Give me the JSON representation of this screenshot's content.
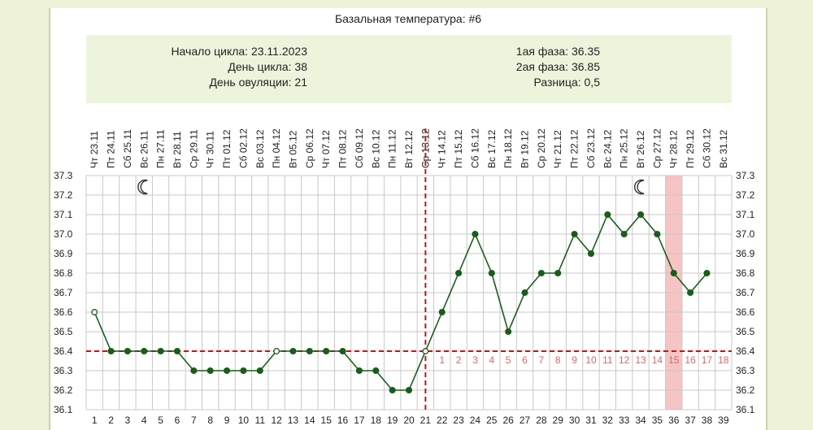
{
  "title": "Базальная температура: #6",
  "info": {
    "cycle_start": "Начало цикла: 23.11.2023",
    "cycle_day": "День цикла: 38",
    "ovulation_day": "День овуляции: 21",
    "phase1": "1ая фаза: 36.35",
    "phase2": "2ая фаза: 36.85",
    "difference": "Разница: 0,5"
  },
  "colors": {
    "line": "#1a5c1a",
    "ovulation": "#cc1111",
    "coverline": "#cc1111",
    "highlight": "#f6c4c4",
    "luteal_numbers": "#d86868",
    "grid": "#c8c8c8"
  },
  "chart_data": {
    "type": "line",
    "y_ticks": [
      "37.3",
      "37.2",
      "37.1",
      "37.0",
      "36.9",
      "36.8",
      "36.7",
      "36.6",
      "36.5",
      "36.4",
      "36.3",
      "36.2",
      "36.1"
    ],
    "ylim": [
      36.1,
      37.3
    ],
    "grid": true,
    "cycle_days": [
      1,
      2,
      3,
      4,
      5,
      6,
      7,
      8,
      9,
      10,
      11,
      12,
      13,
      14,
      15,
      16,
      17,
      18,
      19,
      20,
      21,
      22,
      23,
      24,
      25,
      26,
      27,
      28,
      29,
      30,
      31,
      32,
      33,
      34,
      35,
      36,
      37,
      38,
      39
    ],
    "weekdays": [
      "Чт",
      "Пт",
      "Сб",
      "Вс",
      "Пн",
      "Вт",
      "Ср",
      "Чт",
      "Пт",
      "Сб",
      "Вс",
      "Пн",
      "Вт",
      "Ср",
      "Чт",
      "Пт",
      "Сб",
      "Вс",
      "Пн",
      "Вт",
      "Ср",
      "Чт",
      "Пт",
      "Сб",
      "Вс",
      "Пн",
      "Вт",
      "Ср",
      "Чт",
      "Пт",
      "Сб",
      "Вс",
      "Пн",
      "Вт",
      "Ср",
      "Чт",
      "Пт",
      "Сб",
      "Вс"
    ],
    "dates": [
      "23.11",
      "24.11",
      "25.11",
      "26.11",
      "27.11",
      "28.11",
      "29.11",
      "30.11",
      "01.12",
      "02.12",
      "03.12",
      "04.12",
      "05.12",
      "06.12",
      "07.12",
      "08.12",
      "09.12",
      "10.12",
      "11.12",
      "12.12",
      "13.12",
      "14.12",
      "15.12",
      "16.12",
      "17.12",
      "18.12",
      "19.12",
      "20.12",
      "21.12",
      "22.12",
      "23.12",
      "24.12",
      "25.12",
      "26.12",
      "27.12",
      "28.12",
      "29.12",
      "30.12",
      "31.12"
    ],
    "temperatures": [
      36.6,
      36.4,
      36.4,
      36.4,
      36.4,
      36.4,
      36.3,
      36.3,
      36.3,
      36.3,
      36.3,
      36.4,
      36.4,
      36.4,
      36.4,
      36.4,
      36.3,
      36.3,
      36.2,
      36.2,
      36.4,
      36.6,
      36.8,
      37.0,
      36.8,
      36.5,
      36.7,
      36.8,
      36.8,
      37.0,
      36.9,
      37.1,
      37.0,
      37.1,
      37.0,
      36.8,
      36.7,
      36.8
    ],
    "open_markers_days": [
      1,
      12,
      21
    ],
    "ovulation_day": 21,
    "coverline": 36.4,
    "luteal_days": [
      "1",
      "2",
      "3",
      "4",
      "5",
      "6",
      "7",
      "8",
      "9",
      "10",
      "11",
      "12",
      "13",
      "14",
      "15",
      "16",
      "17",
      "18"
    ],
    "luteal_start_day": 22,
    "highlighted_day": 36,
    "moon_days": [
      4,
      34
    ]
  }
}
